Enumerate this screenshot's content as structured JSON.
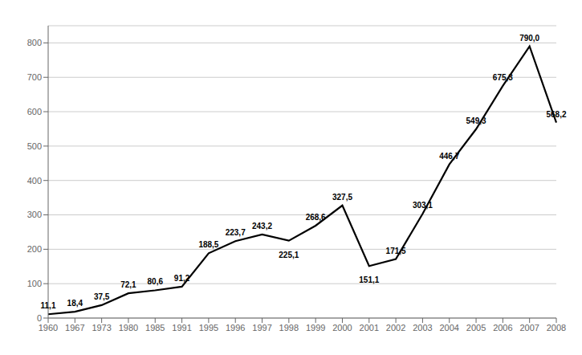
{
  "chart_data": {
    "type": "line",
    "categories": [
      "1960",
      "1967",
      "1973",
      "1980",
      "1985",
      "1991",
      "1995",
      "1996",
      "1997",
      "1998",
      "1999",
      "2000",
      "2001",
      "2002",
      "2003",
      "2004",
      "2005",
      "2006",
      "2007",
      "2008"
    ],
    "values": [
      11.1,
      18.4,
      37.5,
      72.1,
      80.6,
      91.2,
      188.5,
      223.7,
      243.2,
      225.1,
      268.6,
      327.5,
      151.1,
      171.5,
      303.1,
      446.7,
      549.3,
      675.3,
      790.0,
      568.2
    ],
    "value_labels": [
      "11,1",
      "18,4",
      "37,5",
      "72,1",
      "80,6",
      "91,2",
      "188,5",
      "223,7",
      "243,2",
      "225,1",
      "268,6",
      "327,5",
      "151,1",
      "171,5",
      "303,1",
      "446,7",
      "549,3",
      "675,3",
      "790,0",
      "568,2"
    ],
    "color": "#000000",
    "ylim": [
      0,
      850
    ],
    "yticks": [
      0,
      100,
      200,
      300,
      400,
      500,
      600,
      700,
      800
    ],
    "grid": true,
    "data_labels": true
  }
}
